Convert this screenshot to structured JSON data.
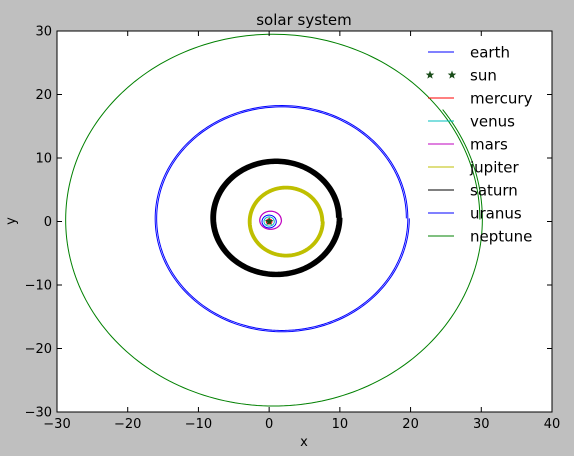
{
  "chart_data": {
    "type": "line",
    "title": "solar system",
    "xlabel": "x",
    "ylabel": "y",
    "xlim": [
      -30,
      40
    ],
    "ylim": [
      -30,
      30
    ],
    "xticks": [
      -30,
      -20,
      -10,
      0,
      10,
      20,
      30,
      40
    ],
    "yticks": [
      -30,
      -20,
      -10,
      0,
      10,
      20,
      30
    ],
    "grid": false,
    "legend_position": "top-right",
    "series": [
      {
        "name": "earth",
        "color": "#0000ff",
        "marker": "line",
        "center": [
          0.0,
          0.0
        ],
        "semi_axes": [
          1.0,
          1.0
        ],
        "turns": 1
      },
      {
        "name": "sun",
        "color": "#1a4d1a",
        "marker": "star",
        "points": [
          [
            0,
            0
          ]
        ]
      },
      {
        "name": "mercury",
        "color": "#ff0000",
        "marker": "line",
        "center": [
          0.0,
          0.0
        ],
        "semi_axes": [
          0.4,
          0.4
        ],
        "turns": 1
      },
      {
        "name": "venus",
        "color": "#00bfbf",
        "marker": "line",
        "center": [
          0.0,
          0.0
        ],
        "semi_axes": [
          0.72,
          0.72
        ],
        "turns": 1
      },
      {
        "name": "mars",
        "color": "#bf00bf",
        "marker": "line",
        "center": [
          0.2,
          0.2
        ],
        "semi_axes": [
          1.5,
          1.4
        ],
        "turns": 3
      },
      {
        "name": "jupiter",
        "color": "#bfbf00",
        "marker": "line",
        "center": [
          2.4,
          0.0
        ],
        "semi_axes": [
          5.0,
          5.2
        ],
        "turns": 5
      },
      {
        "name": "saturn",
        "color": "#000000",
        "marker": "line",
        "center": [
          1.0,
          0.6
        ],
        "semi_axes": [
          8.6,
          8.6
        ],
        "turns": 6
      },
      {
        "name": "uranus",
        "color": "#0000ff",
        "marker": "line",
        "center": [
          1.8,
          0.5
        ],
        "semi_axes": [
          17.6,
          17.5
        ],
        "turns": 2
      },
      {
        "name": "neptune",
        "color": "#008000",
        "marker": "line",
        "center": [
          0.6,
          0.3
        ],
        "semi_axes": [
          29.2,
          29.1
        ],
        "turns": 1.1
      }
    ]
  }
}
